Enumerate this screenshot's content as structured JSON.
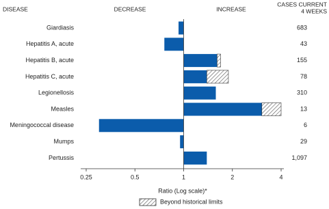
{
  "chart_data": {
    "type": "hbar",
    "headers": {
      "disease": "DISEASE",
      "decrease": "DECREASE",
      "increase": "INCREASE",
      "cases": [
        "CASES CURRENT",
        "4 WEEKS"
      ]
    },
    "categories": [
      "Giardiasis",
      "Hepatitis A, acute",
      "Hepatitis B, acute",
      "Hepatitis C, acute",
      "Legionellosis",
      "Measles",
      "Meningococcal disease",
      "Mumps",
      "Pertussis"
    ],
    "values": [
      0.93,
      0.76,
      1.69,
      1.89,
      1.58,
      4.0,
      0.3,
      0.95,
      1.39
    ],
    "historical_limits": [
      null,
      null,
      1.61,
      1.39,
      null,
      3.04,
      null,
      null,
      null
    ],
    "color": "#0b5cab",
    "cases": {
      "values": [
        683,
        43,
        155,
        78,
        310,
        13,
        6,
        29,
        1097
      ],
      "value_labels": [
        "683",
        "43",
        "155",
        "78",
        "310",
        "13",
        "6",
        "29",
        "1,097"
      ]
    },
    "x_scale": "log",
    "baseline": 1,
    "xlim": [
      0.25,
      4
    ],
    "xticks": [
      0.25,
      0.5,
      1,
      2,
      4
    ],
    "xlabel": "Ratio (Log scale)*",
    "legend": {
      "label": "Beyond historical limits"
    }
  }
}
